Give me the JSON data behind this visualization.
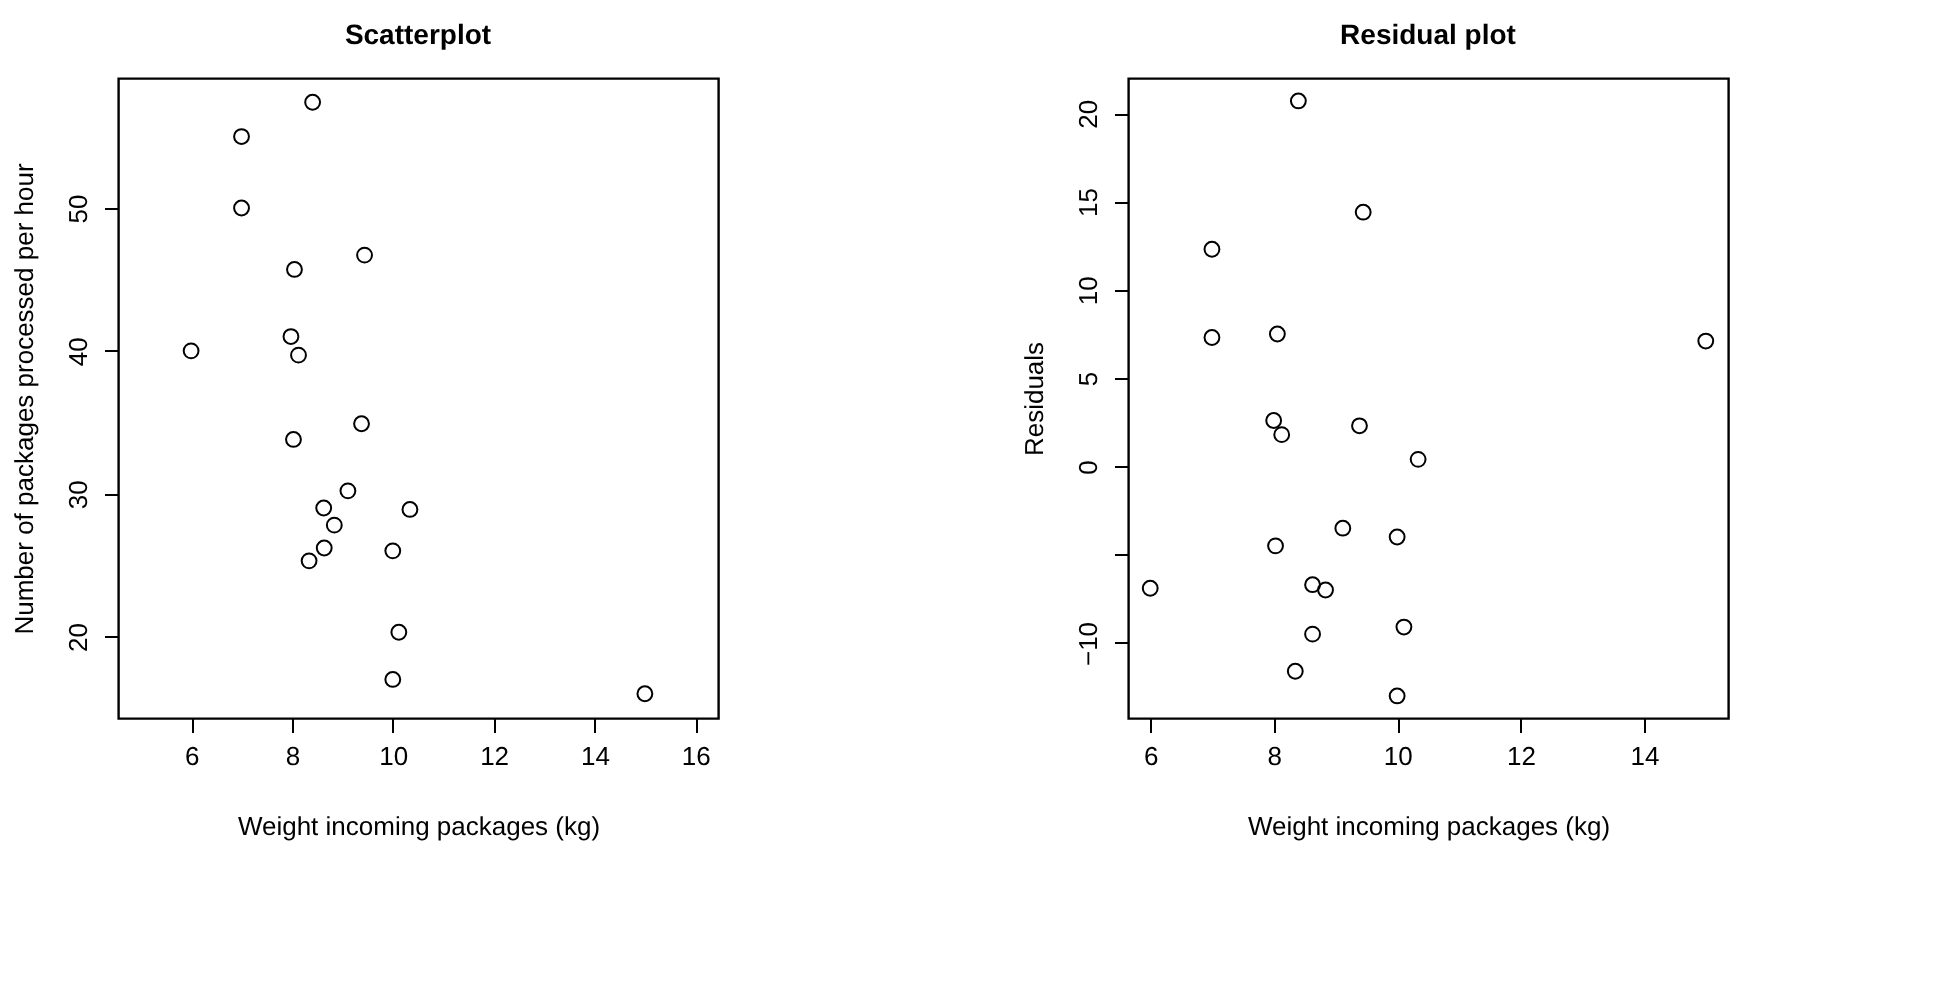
{
  "chart_data": [
    {
      "type": "scatter",
      "title": "Scatterplot",
      "xlabel": "Weight incoming packages (kg)",
      "ylabel": "Number of packages processed per hour",
      "marker": "circle",
      "grid": false,
      "color": "#000000",
      "x": [
        8.41,
        7.0,
        7.0,
        9.44,
        8.05,
        7.98,
        8.13,
        6.0,
        9.38,
        8.03,
        9.11,
        8.63,
        10.34,
        8.84,
        8.64,
        10.0,
        8.34,
        10.12,
        10.0,
        15.0
      ],
      "values": [
        57.4,
        55.0,
        50.0,
        46.7,
        45.7,
        41.0,
        39.7,
        40.0,
        34.9,
        33.8,
        30.2,
        29.0,
        28.9,
        27.8,
        26.2,
        26.0,
        25.3,
        20.3,
        17.0,
        16.0
      ],
      "xlim": [
        4.55,
        16.45
      ],
      "ylim": [
        14.3,
        59.1
      ],
      "xticks": [
        6,
        8,
        10,
        12,
        14,
        16
      ],
      "yticks": [
        20,
        30,
        40,
        50
      ]
    },
    {
      "type": "scatter",
      "title": "Residual plot",
      "xlabel": "Weight incoming packages (kg)",
      "ylabel": "Residuals",
      "marker": "circle",
      "grid": false,
      "color": "#000000",
      "x": [
        8.4,
        9.45,
        7.0,
        7.0,
        8.06,
        8.0,
        8.13,
        9.39,
        10.34,
        9.12,
        10.0,
        8.03,
        6.0,
        8.63,
        8.84,
        10.11,
        8.63,
        8.35,
        10.0,
        15.0
      ],
      "values": [
        20.7,
        14.4,
        12.3,
        7.3,
        7.5,
        2.6,
        1.8,
        2.3,
        0.4,
        -3.5,
        -4.0,
        -4.5,
        -6.9,
        -6.7,
        -7.0,
        -9.1,
        -9.5,
        -11.6,
        -13.0,
        7.1
      ],
      "xlim": [
        5.64,
        15.36
      ],
      "ylim": [
        -14.25,
        22.0
      ],
      "xticks": [
        6,
        8,
        10,
        12,
        14
      ],
      "yticks": [
        -10,
        {
          "value": -5,
          "label": null
        },
        0,
        5,
        10,
        15,
        20
      ]
    }
  ]
}
